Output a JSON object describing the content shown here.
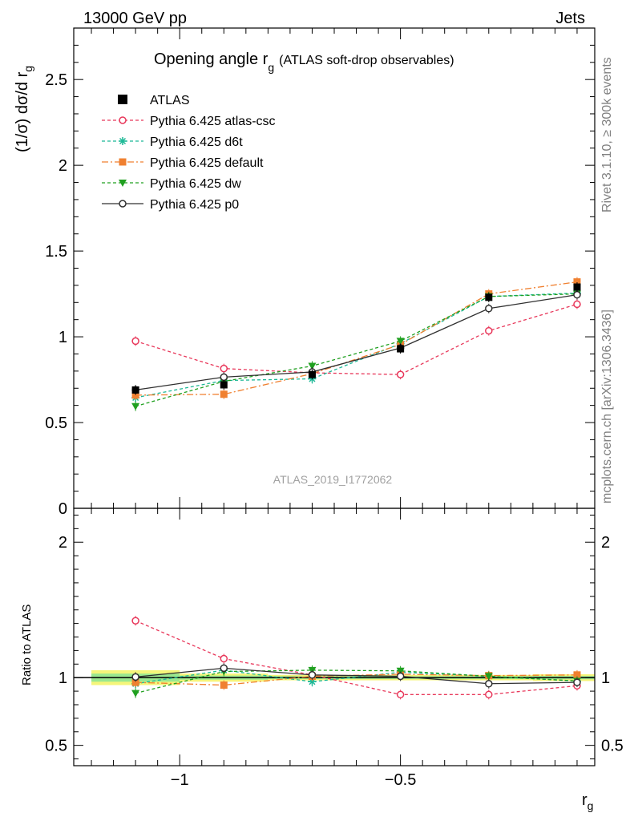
{
  "header": {
    "left": "13000 GeV pp",
    "right": "Jets"
  },
  "side": {
    "rivet": "Rivet 3.1.10, ≥ 300k events",
    "mcplots": "mcplots.cern.ch [arXiv:1306.3436]"
  },
  "chart_data": {
    "type": "line",
    "title_main": "Opening angle r",
    "title_sub": "g",
    "title_extra": "(ATLAS soft-drop observables)",
    "ylabel": "(1/σ) dσ/d r",
    "ylabel_sub": "g",
    "xlabel": "r",
    "xlabel_sub": "g",
    "ratio_ylabel": "Ratio to ATLAS",
    "watermark": "ATLAS_2019_I1772062",
    "xlim": [
      -1.24,
      -0.06
    ],
    "ylim": [
      0,
      2.8
    ],
    "ratio_ylim": [
      0.35,
      2.25
    ],
    "x_ticks": [
      -1,
      -0.5
    ],
    "x_tick_labels": [
      "−1",
      "−0.5"
    ],
    "y_ticks": [
      0,
      0.5,
      1,
      1.5,
      2,
      2.5
    ],
    "y_tick_labels": [
      "0",
      "0.5",
      "1",
      "1.5",
      "2",
      "2.5"
    ],
    "ratio_y_ticks": [
      0.5,
      1,
      2
    ],
    "ratio_y_tick_labels": [
      "0.5",
      "1",
      "2"
    ],
    "x": [
      -1.1,
      -0.9,
      -0.7,
      -0.5,
      -0.3,
      -0.1
    ],
    "band_x_edges": [
      -1.2,
      -1.0,
      -0.8,
      -0.6,
      -0.4,
      -0.2,
      -0.06
    ],
    "series": [
      {
        "name": "ATLAS",
        "color": "#000000",
        "marker": "square-filled",
        "dash": "none",
        "line": false,
        "values": [
          0.69,
          0.72,
          0.78,
          0.93,
          1.23,
          1.29
        ],
        "ratio": [
          1.0,
          1.0,
          1.0,
          1.0,
          1.0,
          1.0
        ]
      },
      {
        "name": "Pythia 6.425 atlas-csc",
        "color": "#e8375a",
        "marker": "circle-open",
        "dash": "4,3",
        "line": true,
        "values": [
          0.975,
          0.815,
          0.79,
          0.78,
          1.035,
          1.19
        ],
        "ratio": [
          1.42,
          1.14,
          1.02,
          0.875,
          0.875,
          0.94
        ]
      },
      {
        "name": "Pythia 6.425 d6t",
        "color": "#1cb896",
        "marker": "star",
        "dash": "4,3",
        "line": true,
        "values": [
          0.645,
          0.745,
          0.755,
          0.96,
          1.235,
          1.255
        ],
        "ratio": [
          0.955,
          1.055,
          0.97,
          1.04,
          1.01,
          0.975
        ]
      },
      {
        "name": "Pythia 6.425 default",
        "color": "#f08030",
        "marker": "square-filled",
        "dash": "8,3,2,3",
        "line": true,
        "values": [
          0.66,
          0.665,
          0.785,
          0.955,
          1.25,
          1.32
        ],
        "ratio": [
          0.965,
          0.945,
          1.01,
          1.025,
          1.015,
          1.02
        ]
      },
      {
        "name": "Pythia 6.425 dw",
        "color": "#20a020",
        "marker": "triangle-down",
        "dash": "4,3",
        "line": true,
        "values": [
          0.595,
          0.74,
          0.83,
          0.975,
          1.235,
          1.25
        ],
        "ratio": [
          0.885,
          1.045,
          1.055,
          1.05,
          1.01,
          0.975
        ]
      },
      {
        "name": "Pythia 6.425 p0",
        "color": "#303030",
        "marker": "circle-open",
        "dash": "none",
        "line": true,
        "values": [
          0.69,
          0.765,
          0.795,
          0.935,
          1.165,
          1.245
        ],
        "ratio": [
          1.005,
          1.07,
          1.02,
          1.01,
          0.955,
          0.965
        ]
      }
    ],
    "legend_position": "top-left"
  }
}
